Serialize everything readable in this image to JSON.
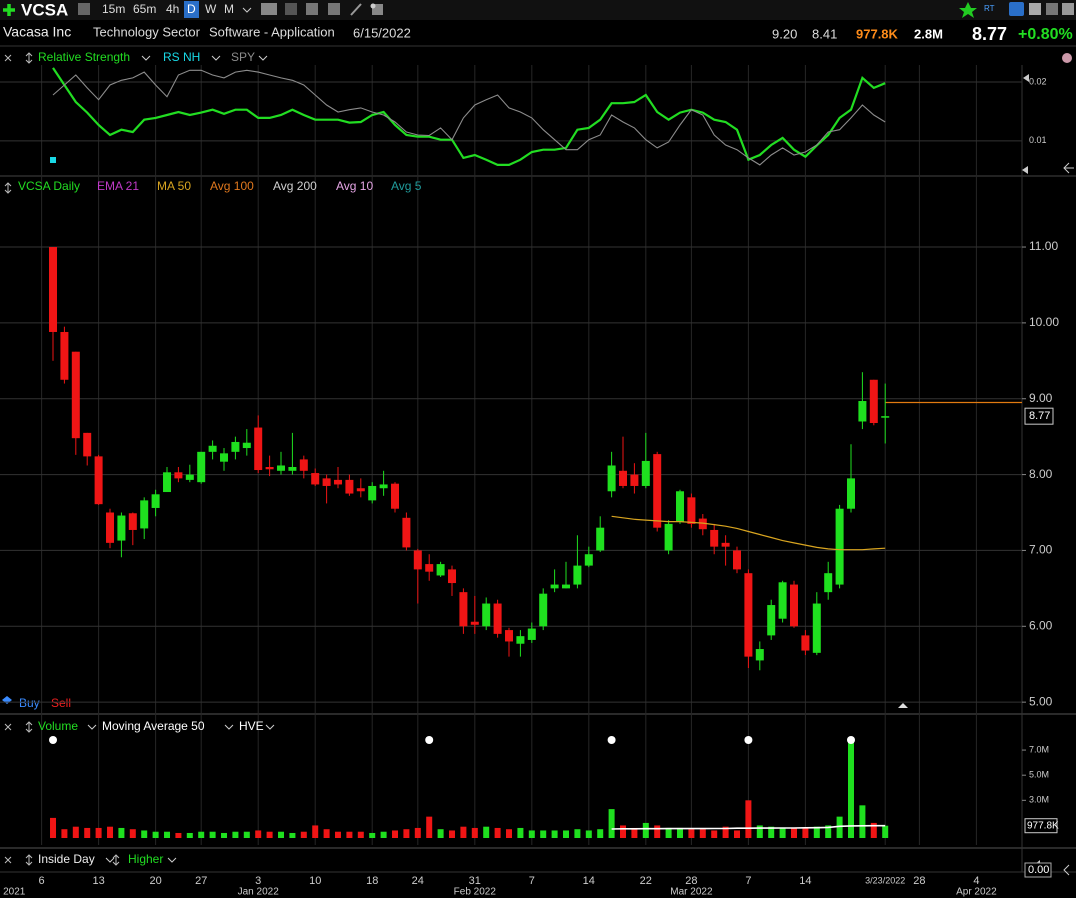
{
  "toolbar": {
    "symbol": "VCSA",
    "intervals": [
      "15m",
      "65m",
      "4h",
      "D",
      "W",
      "M"
    ],
    "rt": "RT"
  },
  "info": {
    "name": "Vacasa Inc",
    "sector": "Technology Sector",
    "industry": "Software - Application",
    "date": "6/15/2022",
    "high": "9.20",
    "low": "8.41",
    "volume": "977.8K",
    "avg_volume": "2.8M",
    "last": "8.77",
    "change": "+0.80%"
  },
  "signals": {
    "buy": "Buy",
    "sell": "Sell"
  },
  "bottom_panel": {
    "legend": [
      "Inside Day",
      "Higher"
    ],
    "value": "0.00"
  },
  "chart_data": [
    {
      "type": "line",
      "xlim": [
        -4.65,
        85
      ],
      "ylim": [
        0.0047,
        0.0229
      ],
      "yticks": [
        0.01,
        0.02
      ],
      "grid": true,
      "series": [
        {
          "name": "Relative Strength",
          "color": "#22dd22",
          "values": [
            0.0224,
            0.0195,
            0.0166,
            0.0148,
            0.0127,
            0.011,
            0.0119,
            0.0115,
            0.0136,
            0.0139,
            0.0144,
            0.0149,
            0.0144,
            0.0148,
            0.0153,
            0.0146,
            0.0153,
            0.0153,
            0.0139,
            0.0139,
            0.0144,
            0.0153,
            0.0144,
            0.0136,
            0.0136,
            0.0136,
            0.0131,
            0.0132,
            0.0144,
            0.0149,
            0.0127,
            0.011,
            0.0107,
            0.0107,
            0.0102,
            0.0102,
            0.0071,
            0.0076,
            0.0068,
            0.0059,
            0.0059,
            0.0068,
            0.0081,
            0.0085,
            0.0085,
            0.0088,
            0.0119,
            0.0122,
            0.0136,
            0.0164,
            0.0164,
            0.0166,
            0.0178,
            0.0149,
            0.0136,
            0.0148,
            0.0153,
            0.0148,
            0.0136,
            0.0132,
            0.0119,
            0.0068,
            0.0076,
            0.0093,
            0.0105,
            0.0085,
            0.0073,
            0.0092,
            0.011,
            0.0139,
            0.0153,
            0.0207,
            0.019,
            0.0198
          ]
        },
        {
          "name": "SPY",
          "color": "#8c8c8c",
          "values": [
            0.0178,
            0.0195,
            0.0212,
            0.019,
            0.017,
            0.0195,
            0.0203,
            0.0207,
            0.0217,
            0.0195,
            0.0175,
            0.0212,
            0.022,
            0.022,
            0.0212,
            0.0207,
            0.0217,
            0.022,
            0.0217,
            0.0212,
            0.0207,
            0.0203,
            0.0195,
            0.0178,
            0.0161,
            0.0149,
            0.0153,
            0.0156,
            0.0149,
            0.0144,
            0.0132,
            0.0115,
            0.011,
            0.0109,
            0.0122,
            0.0102,
            0.0139,
            0.0161,
            0.017,
            0.0178,
            0.0156,
            0.0149,
            0.0139,
            0.0119,
            0.0102,
            0.0085,
            0.0085,
            0.0102,
            0.011,
            0.0144,
            0.0132,
            0.0122,
            0.0102,
            0.0088,
            0.0098,
            0.0127,
            0.0153,
            0.0144,
            0.011,
            0.0093,
            0.0085,
            0.0071,
            0.0059,
            0.0076,
            0.0088,
            0.0076,
            0.0081,
            0.0093,
            0.0115,
            0.0119,
            0.0139,
            0.0161,
            0.0144,
            0.0132
          ]
        }
      ],
      "rs_nh": {
        "name": "RS NH",
        "color": "#19d9e6",
        "markers": [
          0
        ]
      }
    },
    {
      "type": "candlestick",
      "xlim": [
        -4.65,
        85
      ],
      "ylim": [
        4.87,
        11.62
      ],
      "yticks": [
        {
          "value": 5,
          "label": "5.00"
        },
        {
          "value": 6,
          "label": "6.00"
        },
        {
          "value": 7,
          "label": "7.00"
        },
        {
          "value": 8,
          "label": "8.00"
        },
        {
          "value": 9,
          "label": "9.00"
        },
        {
          "value": 10,
          "label": "10.00"
        },
        {
          "value": 11,
          "label": "11.00"
        }
      ],
      "xticks": [
        {
          "value": -1,
          "label": "6"
        },
        {
          "value": 4,
          "label": "13"
        },
        {
          "value": 9,
          "label": "20"
        },
        {
          "value": 13,
          "label": "27"
        },
        {
          "value": 18,
          "label": "3"
        },
        {
          "value": 23,
          "label": "10"
        },
        {
          "value": 28,
          "label": "18"
        },
        {
          "value": 32,
          "label": "24"
        },
        {
          "value": 37,
          "label": "31"
        },
        {
          "value": 42,
          "label": "7"
        },
        {
          "value": 47,
          "label": "14"
        },
        {
          "value": 52,
          "label": "22"
        },
        {
          "value": 56,
          "label": "28"
        },
        {
          "value": 61,
          "label": "7"
        },
        {
          "value": 66,
          "label": "14"
        },
        {
          "value": 73,
          "label": "3/23/2022"
        },
        {
          "value": 76,
          "label": "28"
        },
        {
          "value": 81,
          "label": "4"
        }
      ],
      "month_ticks": [
        {
          "value": -3.4,
          "label": "2021"
        },
        {
          "value": 18,
          "label": "Jan 2022"
        },
        {
          "value": 37,
          "label": "Feb 2022"
        },
        {
          "value": 56,
          "label": "Mar 2022"
        },
        {
          "value": 81,
          "label": "Apr 2022"
        }
      ],
      "grid": true,
      "up_color": "#1fe01f",
      "down_color": "#f01515",
      "series": [
        {
          "name": "VCSA Daily",
          "color": "#22dd22",
          "open": [
            11.0,
            9.88,
            9.62,
            8.55,
            8.24,
            7.5,
            7.13,
            7.49,
            7.29,
            7.56,
            7.77,
            8.03,
            7.93,
            7.9,
            8.3,
            8.17,
            8.3,
            8.35,
            8.62,
            8.1,
            8.05,
            8.05,
            8.2,
            8.02,
            7.95,
            7.93,
            7.93,
            7.82,
            7.66,
            7.82,
            7.88,
            7.43,
            7.0,
            6.82,
            6.67,
            6.75,
            6.45,
            6.06,
            6.0,
            6.3,
            5.95,
            5.77,
            5.82,
            6.0,
            6.5,
            6.5,
            6.55,
            6.8,
            7.0,
            7.78,
            8.05,
            8.0,
            7.85,
            8.27,
            7.0,
            7.38,
            7.7,
            7.42,
            7.27,
            7.1,
            7.0,
            6.7,
            5.55,
            5.88,
            6.1,
            6.55,
            5.88,
            5.65,
            6.45,
            6.55,
            7.55,
            8.7,
            9.25,
            8.75
          ],
          "high": [
            11.0,
            9.95,
            9.62,
            8.55,
            8.26,
            7.55,
            7.5,
            7.5,
            7.7,
            7.8,
            8.1,
            8.1,
            8.13,
            8.3,
            8.45,
            8.35,
            8.5,
            8.6,
            8.78,
            8.25,
            8.3,
            8.55,
            8.25,
            8.08,
            8.0,
            8.1,
            8.0,
            7.95,
            7.9,
            8.05,
            7.9,
            7.5,
            7.02,
            6.95,
            6.85,
            6.8,
            6.5,
            6.4,
            6.38,
            6.35,
            5.98,
            5.95,
            6.05,
            6.5,
            6.75,
            6.85,
            7.2,
            7.05,
            7.45,
            8.3,
            8.5,
            8.15,
            8.55,
            8.3,
            7.4,
            7.8,
            7.75,
            7.48,
            7.35,
            7.2,
            7.05,
            6.75,
            5.8,
            6.35,
            6.6,
            6.6,
            5.95,
            6.45,
            6.85,
            7.6,
            8.4,
            9.35,
            9.25,
            9.2
          ],
          "low": [
            9.5,
            9.2,
            8.26,
            8.12,
            7.6,
            7.03,
            6.91,
            7.07,
            7.15,
            7.45,
            7.77,
            7.9,
            7.9,
            7.88,
            8.2,
            8.05,
            8.2,
            8.25,
            8.02,
            7.98,
            8.0,
            8.0,
            7.95,
            7.85,
            7.62,
            7.82,
            7.72,
            7.7,
            7.62,
            7.72,
            7.5,
            7.0,
            6.3,
            6.6,
            6.65,
            6.4,
            5.9,
            5.9,
            5.95,
            5.85,
            5.6,
            5.6,
            5.78,
            5.95,
            6.45,
            6.5,
            6.5,
            6.78,
            6.98,
            7.7,
            7.82,
            7.75,
            7.82,
            7.25,
            6.95,
            7.35,
            7.3,
            7.2,
            6.95,
            6.8,
            6.7,
            5.45,
            5.42,
            5.82,
            6.05,
            5.98,
            5.62,
            5.62,
            6.35,
            6.5,
            7.5,
            8.6,
            8.65,
            8.41
          ],
          "close": [
            9.88,
            9.25,
            8.48,
            8.24,
            7.61,
            7.1,
            7.46,
            7.27,
            7.66,
            7.74,
            8.03,
            7.95,
            8.0,
            8.3,
            8.38,
            8.28,
            8.43,
            8.42,
            8.06,
            8.07,
            8.12,
            8.1,
            8.05,
            7.87,
            7.85,
            7.87,
            7.75,
            7.78,
            7.85,
            7.87,
            7.55,
            7.04,
            6.75,
            6.72,
            6.82,
            6.57,
            6.0,
            6.02,
            6.3,
            5.9,
            5.8,
            5.87,
            5.97,
            6.43,
            6.55,
            6.55,
            6.8,
            6.95,
            7.3,
            8.12,
            7.85,
            7.85,
            8.18,
            7.3,
            7.35,
            7.78,
            7.35,
            7.28,
            7.05,
            7.05,
            6.75,
            5.6,
            5.7,
            6.28,
            6.58,
            6.0,
            5.68,
            6.3,
            6.7,
            7.55,
            7.95,
            8.97,
            8.68,
            8.77
          ]
        },
        {
          "name": "MA 50",
          "color": "#d9a520",
          "values": [
            null,
            null,
            null,
            null,
            null,
            null,
            null,
            null,
            null,
            null,
            null,
            null,
            null,
            null,
            null,
            null,
            null,
            null,
            null,
            null,
            null,
            null,
            null,
            null,
            null,
            null,
            null,
            null,
            null,
            null,
            null,
            null,
            null,
            null,
            null,
            null,
            null,
            null,
            null,
            null,
            null,
            null,
            null,
            null,
            null,
            null,
            null,
            null,
            null,
            7.45,
            7.43,
            7.41,
            7.4,
            7.39,
            7.38,
            7.38,
            7.37,
            7.36,
            7.34,
            7.32,
            7.29,
            7.25,
            7.21,
            7.17,
            7.13,
            7.1,
            7.07,
            7.04,
            7.02,
            7.01,
            7.01,
            7.01,
            7.02,
            7.03
          ]
        }
      ],
      "indicators": [
        {
          "name": "EMA 21",
          "color": "#c03ac8"
        },
        {
          "name": "Avg 100",
          "color": "#e0781e"
        },
        {
          "name": "Avg 200",
          "color": "#d0d0d0"
        },
        {
          "name": "Avg 10",
          "color": "#e6a6e6"
        },
        {
          "name": "Avg 5",
          "color": "#209c9c"
        }
      ],
      "price_line": {
        "value": 8.95,
        "color": "#e07a10"
      },
      "last_price": {
        "value": 8.77,
        "label": "8.77"
      }
    },
    {
      "type": "bar",
      "xlim": [
        -4.65,
        85
      ],
      "ylim": [
        0,
        8.2
      ],
      "yticks": [
        {
          "value": 3,
          "label": "3.0M"
        },
        {
          "value": 5,
          "label": "5.0M"
        },
        {
          "value": 7,
          "label": "7.0M"
        }
      ],
      "last_value_label": {
        "value": 0.9778,
        "label": "977.8K"
      },
      "series": [
        {
          "name": "Volume",
          "color": "#22dd22",
          "values": [
            1.6,
            0.7,
            0.9,
            0.8,
            0.8,
            0.9,
            0.8,
            0.7,
            0.6,
            0.5,
            0.5,
            0.4,
            0.4,
            0.5,
            0.5,
            0.4,
            0.5,
            0.5,
            0.6,
            0.5,
            0.5,
            0.4,
            0.5,
            1.0,
            0.7,
            0.5,
            0.5,
            0.5,
            0.4,
            0.5,
            0.6,
            0.7,
            0.8,
            1.7,
            0.7,
            0.6,
            0.9,
            0.8,
            0.9,
            0.8,
            0.7,
            0.8,
            0.6,
            0.6,
            0.6,
            0.6,
            0.7,
            0.6,
            0.7,
            2.3,
            1.0,
            0.8,
            1.2,
            1.0,
            0.8,
            0.8,
            0.7,
            0.7,
            0.6,
            0.9,
            0.6,
            3.0,
            1.0,
            0.9,
            0.8,
            0.8,
            0.8,
            0.9,
            1.0,
            1.7,
            7.8,
            2.6,
            1.2,
            0.9778
          ]
        },
        {
          "name": "Moving Average 50",
          "color": "#ffffff",
          "values": [
            null,
            null,
            null,
            null,
            null,
            null,
            null,
            null,
            null,
            null,
            null,
            null,
            null,
            null,
            null,
            null,
            null,
            null,
            null,
            null,
            null,
            null,
            null,
            null,
            null,
            null,
            null,
            null,
            null,
            null,
            null,
            null,
            null,
            null,
            null,
            null,
            null,
            null,
            null,
            null,
            null,
            null,
            null,
            null,
            null,
            null,
            null,
            null,
            null,
            0.72,
            0.73,
            0.73,
            0.74,
            0.74,
            0.75,
            0.75,
            0.75,
            0.75,
            0.76,
            0.76,
            0.78,
            0.78,
            0.79,
            0.79,
            0.8,
            0.8,
            0.81,
            0.82,
            0.84,
            0.93,
            0.96,
            0.97,
            0.98,
            0.98
          ]
        }
      ],
      "hve": {
        "name": "HVE",
        "color": "#ffffff",
        "markers": [
          0,
          33,
          49,
          61,
          70
        ]
      }
    }
  ]
}
